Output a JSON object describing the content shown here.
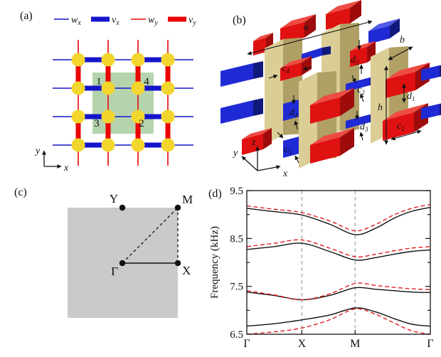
{
  "figure": {
    "panel_a": {
      "label": "(a)",
      "legend": [
        {
          "main": "w",
          "sub": "x",
          "style": "thin",
          "color": "#1414cc"
        },
        {
          "main": "v",
          "sub": "x",
          "style": "thick",
          "color": "#1414cc"
        },
        {
          "main": "w",
          "sub": "y",
          "style": "thin",
          "color": "#ea0404"
        },
        {
          "main": "v",
          "sub": "y",
          "style": "thick",
          "color": "#ea0404"
        }
      ],
      "site_labels": {
        "s1": "1",
        "s4": "4",
        "s3": "3",
        "s2": "2"
      },
      "axis_labels": {
        "x": "x",
        "y": "y"
      },
      "colors": {
        "site": "#f2d62e",
        "unit_cell": "#b5d4ad",
        "x_bond": "#1414cc",
        "y_bond": "#ea0404"
      }
    },
    "panel_b": {
      "label": "(b)",
      "dim_labels": {
        "a": {
          "main": "a",
          "sub": ""
        },
        "b": {
          "main": "b",
          "sub": ""
        },
        "h": {
          "main": "h",
          "sub": ""
        },
        "c1": {
          "main": "c",
          "sub": "1"
        },
        "c2": {
          "main": "c",
          "sub": "2"
        },
        "c3": {
          "main": "c",
          "sub": "3"
        },
        "c4": {
          "main": "c",
          "sub": "4"
        },
        "d1": {
          "main": "d",
          "sub": "1"
        },
        "d2": {
          "main": "d",
          "sub": "2"
        },
        "d3": {
          "main": "d",
          "sub": "3"
        },
        "d4": {
          "main": "d",
          "sub": "4"
        }
      },
      "axis_labels": {
        "x": "x",
        "y": "y",
        "z": "z"
      },
      "colors": {
        "pillar_top": "#ecdfae",
        "pillar_front": "#dbcd96",
        "pillar_side": "#b0a065",
        "blue_top": "#4f5ce6",
        "blue_front": "#1f2ad4",
        "blue_side": "#11187c",
        "red_top": "#ee4b42",
        "red_front": "#df1111",
        "red_side": "#9d0b0b"
      }
    },
    "panel_c": {
      "label": "(c)",
      "points": {
        "gamma": "Γ",
        "x": "X",
        "m": "M",
        "y": "Y"
      },
      "zone_color": "#cacaca"
    },
    "panel_d": {
      "label": "(d)"
    }
  },
  "chart_data": {
    "type": "line",
    "title": "",
    "xlabel": "",
    "ylabel": "Frequency (kHz)",
    "ylim": [
      6.5,
      9.5
    ],
    "yticks": [
      6.5,
      7.5,
      8.5,
      9.5
    ],
    "yticks_minor": [
      7.0,
      8.0,
      9.0
    ],
    "xticks": [
      {
        "label": "Γ",
        "pos": 0
      },
      {
        "label": "X",
        "pos": 0.3
      },
      {
        "label": "M",
        "pos": 0.59
      },
      {
        "label": "Γ",
        "pos": 1
      }
    ],
    "gridlines_x": [
      0.3,
      0.59
    ],
    "grid": "dashed-vertical-at-X-and-M",
    "legend_position": "none",
    "x_samples": [
      0,
      0.15,
      0.3,
      0.45,
      0.59,
      0.7,
      0.8,
      0.9,
      1.0
    ],
    "series": [
      {
        "name": "band1-solid",
        "style": "solid",
        "color": "#111111",
        "values": [
          6.67,
          6.72,
          6.8,
          6.9,
          7.05,
          6.97,
          6.83,
          6.71,
          6.67
        ]
      },
      {
        "name": "band2-solid",
        "style": "solid",
        "color": "#111111",
        "values": [
          7.38,
          7.31,
          7.22,
          7.31,
          7.47,
          7.44,
          7.41,
          7.38,
          7.37
        ]
      },
      {
        "name": "band3-solid",
        "style": "solid",
        "color": "#111111",
        "values": [
          8.27,
          8.33,
          8.4,
          8.23,
          8.05,
          8.1,
          8.17,
          8.23,
          8.26
        ]
      },
      {
        "name": "band4-solid",
        "style": "solid",
        "color": "#111111",
        "values": [
          9.13,
          9.06,
          8.99,
          8.8,
          8.58,
          8.71,
          8.92,
          9.07,
          9.15
        ]
      },
      {
        "name": "band1-dashed",
        "style": "dashed",
        "color": "#e01010",
        "values": [
          6.5,
          6.55,
          6.63,
          6.8,
          7.03,
          6.92,
          6.74,
          6.57,
          6.5
        ]
      },
      {
        "name": "band2-dashed",
        "style": "dashed",
        "color": "#e01010",
        "values": [
          7.41,
          7.32,
          7.22,
          7.34,
          7.56,
          7.52,
          7.48,
          7.45,
          7.43
        ]
      },
      {
        "name": "band3-dashed",
        "style": "dashed",
        "color": "#e01010",
        "values": [
          8.33,
          8.4,
          8.47,
          8.3,
          8.12,
          8.17,
          8.24,
          8.3,
          8.33
        ]
      },
      {
        "name": "band4-dashed",
        "style": "dashed",
        "color": "#e01010",
        "values": [
          9.18,
          9.11,
          9.04,
          8.87,
          8.66,
          8.79,
          8.99,
          9.13,
          9.21
        ]
      }
    ]
  }
}
